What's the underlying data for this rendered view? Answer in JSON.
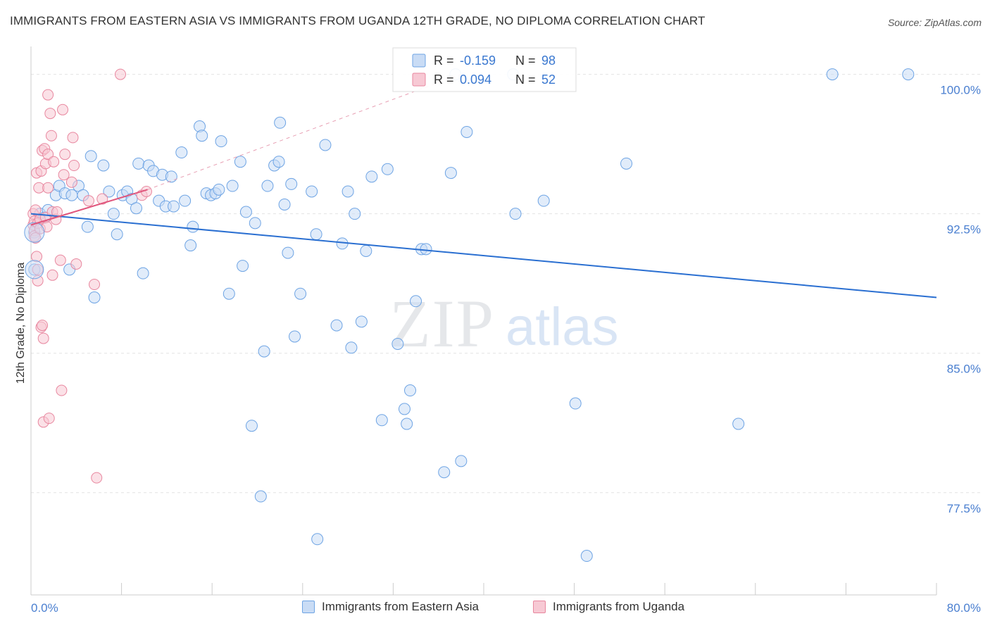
{
  "title": "IMMIGRANTS FROM EASTERN ASIA VS IMMIGRANTS FROM UGANDA 12TH GRADE, NO DIPLOMA CORRELATION CHART",
  "source": "Source: ZipAtlas.com",
  "watermark": {
    "zip": "ZIP",
    "atlas": "atlas"
  },
  "chart_data": {
    "type": "scatter",
    "title": "IMMIGRANTS FROM EASTERN ASIA VS IMMIGRANTS FROM UGANDA 12TH GRADE, NO DIPLOMA CORRELATION CHART",
    "xlabel": "",
    "ylabel": "12th Grade, No Diploma",
    "xlim": [
      0,
      80
    ],
    "ylim": [
      72,
      101.5
    ],
    "x_tick_labels": [
      "0.0%",
      "80.0%"
    ],
    "y_ticks": [
      77.5,
      85.0,
      92.5,
      100.0
    ],
    "y_tick_labels": [
      "77.5%",
      "85.0%",
      "92.5%",
      "100.0%"
    ],
    "grid": "horizontal dashed",
    "legend_position": "bottom-center",
    "stats": [
      {
        "r_label": "R =",
        "r_value": "-0.159",
        "n_label": "N =",
        "n_value": "98"
      },
      {
        "r_label": "R =",
        "r_value": "0.094",
        "n_label": "N =",
        "n_value": "52"
      }
    ],
    "series": [
      {
        "name": "Immigrants from Eastern Asia",
        "color": "#6ea4e4",
        "fill": "#c9dcf5",
        "trend": {
          "x": [
            0,
            80
          ],
          "y": [
            92.5,
            88.0
          ],
          "color": "#2a6fd1"
        },
        "points": [
          [
            0.3,
            91.5
          ],
          [
            0.3,
            89.5
          ],
          [
            0.8,
            92.5
          ],
          [
            1.2,
            92.3
          ],
          [
            1.5,
            92.7
          ],
          [
            2.2,
            93.5
          ],
          [
            2.5,
            94.0
          ],
          [
            3.0,
            93.6
          ],
          [
            3.4,
            89.5
          ],
          [
            3.6,
            93.5
          ],
          [
            4.2,
            94.0
          ],
          [
            4.6,
            93.5
          ],
          [
            5.0,
            91.8
          ],
          [
            5.3,
            95.6
          ],
          [
            5.6,
            88.0
          ],
          [
            6.4,
            95.1
          ],
          [
            6.9,
            93.7
          ],
          [
            7.3,
            92.5
          ],
          [
            7.6,
            91.4
          ],
          [
            8.1,
            93.5
          ],
          [
            8.5,
            93.7
          ],
          [
            8.9,
            93.3
          ],
          [
            9.3,
            92.8
          ],
          [
            9.5,
            95.2
          ],
          [
            9.9,
            89.3
          ],
          [
            10.4,
            95.1
          ],
          [
            10.8,
            94.8
          ],
          [
            11.3,
            93.2
          ],
          [
            11.6,
            94.6
          ],
          [
            11.9,
            92.9
          ],
          [
            12.4,
            94.5
          ],
          [
            12.6,
            92.9
          ],
          [
            13.3,
            95.8
          ],
          [
            13.6,
            93.2
          ],
          [
            14.1,
            90.8
          ],
          [
            14.3,
            91.8
          ],
          [
            14.9,
            97.2
          ],
          [
            15.1,
            96.7
          ],
          [
            15.5,
            93.6
          ],
          [
            15.9,
            93.5
          ],
          [
            16.3,
            93.6
          ],
          [
            16.6,
            93.8
          ],
          [
            16.8,
            96.4
          ],
          [
            17.5,
            88.2
          ],
          [
            17.8,
            94.0
          ],
          [
            18.5,
            95.3
          ],
          [
            18.7,
            89.7
          ],
          [
            19.0,
            92.6
          ],
          [
            19.5,
            81.1
          ],
          [
            19.8,
            92.0
          ],
          [
            20.3,
            77.3
          ],
          [
            20.6,
            85.1
          ],
          [
            20.9,
            94.0
          ],
          [
            21.5,
            95.1
          ],
          [
            21.9,
            95.3
          ],
          [
            22.0,
            97.4
          ],
          [
            22.4,
            93.0
          ],
          [
            22.7,
            90.4
          ],
          [
            23.0,
            94.1
          ],
          [
            23.3,
            85.9
          ],
          [
            23.8,
            88.2
          ],
          [
            24.8,
            93.7
          ],
          [
            25.2,
            91.4
          ],
          [
            25.3,
            75.0
          ],
          [
            26.0,
            96.2
          ],
          [
            27.0,
            86.5
          ],
          [
            27.5,
            90.9
          ],
          [
            28.0,
            93.7
          ],
          [
            28.3,
            85.3
          ],
          [
            28.6,
            92.5
          ],
          [
            29.2,
            86.7
          ],
          [
            29.6,
            90.5
          ],
          [
            30.1,
            94.5
          ],
          [
            31.0,
            81.4
          ],
          [
            31.5,
            94.9
          ],
          [
            32.4,
            85.5
          ],
          [
            33.0,
            82.0
          ],
          [
            33.2,
            81.2
          ],
          [
            33.5,
            83.0
          ],
          [
            34.0,
            87.8
          ],
          [
            34.5,
            90.6
          ],
          [
            34.9,
            90.6
          ],
          [
            36.5,
            78.6
          ],
          [
            37.1,
            94.7
          ],
          [
            37.5,
            100.0
          ],
          [
            38.0,
            79.2
          ],
          [
            38.5,
            96.9
          ],
          [
            42.6,
            100.0
          ],
          [
            42.8,
            92.5
          ],
          [
            45.3,
            93.2
          ],
          [
            48.1,
            82.3
          ],
          [
            49.1,
            74.1
          ],
          [
            52.6,
            95.2
          ],
          [
            62.5,
            81.2
          ],
          [
            70.8,
            100.0
          ],
          [
            77.5,
            100.0
          ]
        ]
      },
      {
        "name": "Immigrants from Uganda",
        "color": "#e8879f",
        "fill": "#f7c9d4",
        "trend": {
          "x": [
            0,
            10.3
          ],
          "y": [
            91.9,
            93.8
          ],
          "color": "#e0557c"
        },
        "trend_extension": {
          "x": [
            10.3,
            38.0
          ],
          "y": [
            93.8,
            100.0
          ]
        },
        "points": [
          [
            0.2,
            92.5
          ],
          [
            0.2,
            91.9
          ],
          [
            0.3,
            91.6
          ],
          [
            0.3,
            92.1
          ],
          [
            0.3,
            91.3
          ],
          [
            0.4,
            92.7
          ],
          [
            0.4,
            91.2
          ],
          [
            0.5,
            94.7
          ],
          [
            0.5,
            90.2
          ],
          [
            0.6,
            92.0
          ],
          [
            0.6,
            89.5
          ],
          [
            0.6,
            88.9
          ],
          [
            0.7,
            93.9
          ],
          [
            0.8,
            92.2
          ],
          [
            0.8,
            91.7
          ],
          [
            0.9,
            94.8
          ],
          [
            0.9,
            86.4
          ],
          [
            1.0,
            95.9
          ],
          [
            1.0,
            86.5
          ],
          [
            1.1,
            85.8
          ],
          [
            1.1,
            81.3
          ],
          [
            1.2,
            96.0
          ],
          [
            1.3,
            95.2
          ],
          [
            1.3,
            92.3
          ],
          [
            1.4,
            91.8
          ],
          [
            1.5,
            93.9
          ],
          [
            1.5,
            98.9
          ],
          [
            1.5,
            95.7
          ],
          [
            1.6,
            81.5
          ],
          [
            1.7,
            97.9
          ],
          [
            1.8,
            96.7
          ],
          [
            1.9,
            92.6
          ],
          [
            1.9,
            89.2
          ],
          [
            2.0,
            95.3
          ],
          [
            2.2,
            92.2
          ],
          [
            2.3,
            92.6
          ],
          [
            2.6,
            90.0
          ],
          [
            2.7,
            83.0
          ],
          [
            2.8,
            98.1
          ],
          [
            2.9,
            94.6
          ],
          [
            3.0,
            95.7
          ],
          [
            3.6,
            94.2
          ],
          [
            3.7,
            96.6
          ],
          [
            3.8,
            95.1
          ],
          [
            4.0,
            89.8
          ],
          [
            5.1,
            93.2
          ],
          [
            5.6,
            88.7
          ],
          [
            5.8,
            78.3
          ],
          [
            6.3,
            93.3
          ],
          [
            7.9,
            100.0
          ],
          [
            9.8,
            93.5
          ],
          [
            10.2,
            93.7
          ]
        ]
      }
    ]
  },
  "legend": {
    "items": [
      {
        "label": "Immigrants from Eastern Asia",
        "color": "#6ea4e4",
        "fill": "#c9dcf5"
      },
      {
        "label": "Immigrants from Uganda",
        "color": "#e8879f",
        "fill": "#f7c9d4"
      }
    ]
  }
}
